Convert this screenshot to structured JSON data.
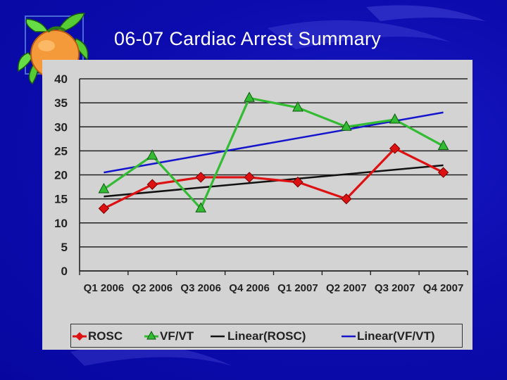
{
  "slide": {
    "title": "06-07 Cardiac Arrest Summary"
  },
  "colors": {
    "background": "#0d0db0",
    "plot_bg": "#d3d3d3",
    "rosc": "#dd1111",
    "vfvt": "#33bb33",
    "linear_rosc": "#111111",
    "linear_vfvt": "#1515cc",
    "gridline": "#222222"
  },
  "icons": {
    "logo": "orange-fruit-icon"
  },
  "chart_data": {
    "type": "line",
    "title": "06-07 Cardiac Arrest Summary",
    "xlabel": "",
    "ylabel": "",
    "ylim": [
      0,
      40
    ],
    "yticks": [
      0,
      5,
      10,
      15,
      20,
      25,
      30,
      35,
      40
    ],
    "grid": true,
    "legend_position": "bottom",
    "categories": [
      "Q1 2006",
      "Q2 2006",
      "Q3 2006",
      "Q4 2006",
      "Q1 2007",
      "Q2 2007",
      "Q3 2007",
      "Q4 2007"
    ],
    "series": [
      {
        "name": "ROSC",
        "marker": "diamond",
        "color": "#dd1111",
        "values": [
          13,
          18,
          19.5,
          19.5,
          18.5,
          15,
          25.5,
          20.5
        ]
      },
      {
        "name": "VF/VT",
        "marker": "triangle",
        "color": "#33bb33",
        "values": [
          17,
          24,
          13,
          36,
          34,
          30,
          31.5,
          26
        ]
      }
    ],
    "trendlines": [
      {
        "name": "Linear(ROSC)",
        "color": "#111111",
        "start": 15.5,
        "end": 22
      },
      {
        "name": "Linear(VF/VT)",
        "color": "#1515cc",
        "start": 20.5,
        "end": 33
      }
    ]
  }
}
